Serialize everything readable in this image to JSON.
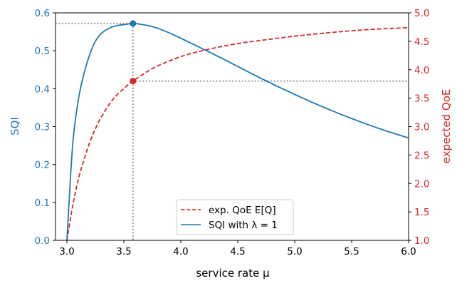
{
  "chart_data": {
    "type": "line",
    "xlabel": "service rate μ",
    "ylabel_left": "SQI",
    "ylabel_right": "expected QoE",
    "xlim": [
      2.9,
      6.0
    ],
    "ylim_left": [
      0.0,
      0.6
    ],
    "ylim_right": [
      1.0,
      5.0
    ],
    "x_ticks": [
      "3.0",
      "3.5",
      "4.0",
      "4.5",
      "5.0",
      "5.5",
      "6.0"
    ],
    "y_left_ticks": [
      "0.0",
      "0.1",
      "0.2",
      "0.3",
      "0.4",
      "0.5",
      "0.6"
    ],
    "y_right_ticks": [
      "1.0",
      "1.5",
      "2.0",
      "2.5",
      "3.0",
      "3.5",
      "4.0",
      "4.5",
      "5.0"
    ],
    "colors": {
      "sqi": "#1f77b4",
      "qoe": "#d62728",
      "marker_line": "#808080"
    },
    "grid": false,
    "legend_position": "bottom-center",
    "series": [
      {
        "name": "exp. QoE E[Q]",
        "axis": "right",
        "style": "dashed",
        "x": [
          3.0,
          3.05,
          3.1,
          3.15,
          3.2,
          3.25,
          3.3,
          3.4,
          3.5,
          3.58,
          3.7,
          3.8,
          4.0,
          4.2,
          4.5,
          4.8,
          5.0,
          5.3,
          5.6,
          6.0
        ],
        "values": [
          1.0,
          1.6,
          2.07,
          2.42,
          2.72,
          2.96,
          3.16,
          3.47,
          3.67,
          3.8,
          3.96,
          4.07,
          4.23,
          4.34,
          4.46,
          4.54,
          4.59,
          4.65,
          4.7,
          4.74
        ]
      },
      {
        "name": "SQI with λ = 1",
        "axis": "left",
        "style": "solid",
        "x": [
          3.0,
          3.05,
          3.1,
          3.15,
          3.2,
          3.25,
          3.3,
          3.35,
          3.4,
          3.45,
          3.5,
          3.55,
          3.58,
          3.6,
          3.7,
          3.8,
          3.9,
          4.0,
          4.2,
          4.4,
          4.6,
          4.8,
          5.0,
          5.2,
          5.4,
          5.6,
          5.8,
          6.0
        ],
        "values": [
          0.0,
          0.25,
          0.37,
          0.44,
          0.49,
          0.525,
          0.545,
          0.556,
          0.563,
          0.567,
          0.569,
          0.571,
          0.572,
          0.572,
          0.567,
          0.559,
          0.547,
          0.533,
          0.504,
          0.474,
          0.443,
          0.413,
          0.385,
          0.358,
          0.333,
          0.31,
          0.289,
          0.27
        ]
      }
    ],
    "optimum": {
      "x": 3.58,
      "sqi": 0.572,
      "qoe": 3.8
    }
  }
}
